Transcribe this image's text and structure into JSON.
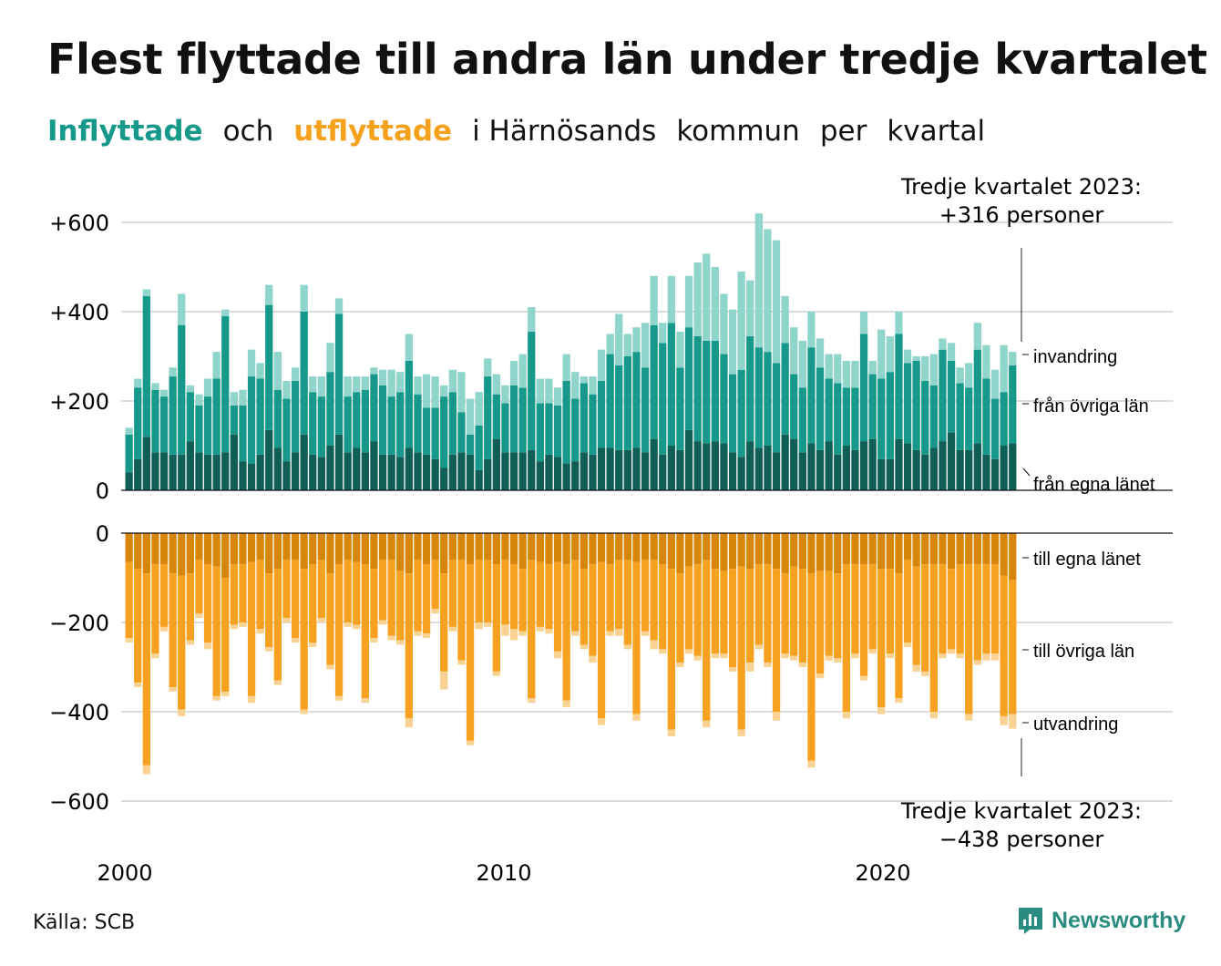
{
  "header": {
    "title": "Flest flyttade till andra län under tredje kvartalet",
    "subtitle_parts": [
      "Inflyttade",
      "och",
      "utflyttade",
      "i Härnösands",
      "kommun",
      "per",
      "kvartal"
    ]
  },
  "annotations": {
    "top_line1": "Tredje kvartalet 2023:",
    "top_line2": "+316 personer",
    "bottom_line1": "Tredje kvartalet 2023:",
    "bottom_line2": "−438 personer"
  },
  "footer": {
    "source": "Källa: SCB",
    "brand": "Newsworthy"
  },
  "colors": {
    "in_egna": "#0f5f57",
    "in_ovriga": "#16998a",
    "in_invandring": "#8fd5cc",
    "out_egna": "#d8860b",
    "out_ovriga": "#f6a11f",
    "out_utvandring": "#fad394"
  },
  "chart_data": {
    "type": "bar",
    "stacked": true,
    "x_start": "2000-Q1",
    "x_tick_labels": [
      "2000",
      "2010",
      "2020"
    ],
    "top_panel": {
      "y_ticks": [
        "+600",
        "+400",
        "+200",
        "0"
      ],
      "ylim": [
        0,
        600
      ],
      "series": [
        {
          "name": "från egna länet",
          "values": [
            40,
            70,
            120,
            85,
            85,
            80,
            80,
            110,
            85,
            80,
            80,
            85,
            125,
            65,
            60,
            80,
            135,
            95,
            65,
            85,
            125,
            80,
            75,
            100,
            125,
            85,
            95,
            85,
            110,
            80,
            80,
            75,
            95,
            85,
            80,
            70,
            50,
            80,
            85,
            80,
            45,
            70,
            115,
            85,
            85,
            85,
            90,
            65,
            80,
            75,
            60,
            65,
            85,
            80,
            95,
            95,
            90,
            90,
            95,
            85,
            115,
            80,
            100,
            90,
            135,
            110,
            105,
            110,
            105,
            85,
            75,
            110,
            95,
            100,
            85,
            125,
            115,
            85,
            105,
            90,
            110,
            80,
            100,
            90,
            110,
            115,
            70,
            70,
            115,
            105,
            90,
            80,
            95,
            110,
            130,
            90,
            90,
            105,
            80,
            70,
            100,
            105
          ]
        },
        {
          "name": "från övriga län",
          "values": [
            85,
            160,
            315,
            140,
            125,
            175,
            290,
            110,
            105,
            130,
            170,
            305,
            65,
            125,
            195,
            170,
            280,
            130,
            140,
            160,
            275,
            140,
            135,
            165,
            270,
            125,
            125,
            140,
            150,
            155,
            130,
            145,
            195,
            130,
            105,
            115,
            160,
            140,
            90,
            45,
            100,
            185,
            100,
            110,
            150,
            145,
            265,
            130,
            115,
            115,
            185,
            140,
            155,
            135,
            150,
            210,
            190,
            210,
            215,
            190,
            255,
            250,
            275,
            185,
            230,
            235,
            230,
            225,
            200,
            175,
            195,
            235,
            225,
            210,
            200,
            205,
            145,
            145,
            215,
            185,
            140,
            160,
            130,
            140,
            240,
            145,
            180,
            195,
            235,
            180,
            200,
            165,
            140,
            205,
            160,
            150,
            140,
            210,
            170,
            135,
            120,
            175
          ]
        },
        {
          "name": "invandring",
          "values": [
            15,
            20,
            15,
            15,
            15,
            20,
            70,
            15,
            25,
            40,
            60,
            15,
            30,
            35,
            60,
            35,
            45,
            85,
            40,
            30,
            60,
            35,
            45,
            65,
            35,
            45,
            35,
            30,
            15,
            35,
            60,
            45,
            60,
            40,
            75,
            70,
            25,
            50,
            90,
            80,
            75,
            40,
            45,
            40,
            55,
            75,
            55,
            55,
            55,
            40,
            60,
            60,
            15,
            40,
            70,
            45,
            115,
            50,
            55,
            100,
            110,
            45,
            105,
            80,
            115,
            165,
            195,
            165,
            135,
            145,
            220,
            125,
            300,
            275,
            275,
            105,
            105,
            105,
            80,
            65,
            55,
            65,
            60,
            60,
            50,
            30,
            110,
            80,
            50,
            30,
            10,
            55,
            70,
            25,
            40,
            35,
            55,
            60,
            75,
            65,
            105,
            30
          ]
        }
      ]
    },
    "bottom_panel": {
      "y_ticks": [
        "0",
        "−200",
        "−400",
        "−600"
      ],
      "ylim": [
        -600,
        0
      ],
      "series": [
        {
          "name": "till egna länet",
          "values": [
            -65,
            -80,
            -90,
            -70,
            -70,
            -90,
            -95,
            -90,
            -60,
            -70,
            -75,
            -100,
            -70,
            -70,
            -65,
            -60,
            -90,
            -80,
            -60,
            -60,
            -80,
            -70,
            -60,
            -90,
            -70,
            -60,
            -65,
            -70,
            -80,
            -60,
            -60,
            -85,
            -90,
            -60,
            -70,
            -60,
            -90,
            -60,
            -60,
            -70,
            -60,
            -60,
            -70,
            -60,
            -70,
            -80,
            -60,
            -65,
            -70,
            -65,
            -70,
            -60,
            -80,
            -70,
            -65,
            -70,
            -60,
            -60,
            -65,
            -60,
            -60,
            -70,
            -80,
            -90,
            -75,
            -70,
            -60,
            -80,
            -85,
            -80,
            -75,
            -80,
            -70,
            -70,
            -80,
            -90,
            -75,
            -80,
            -90,
            -85,
            -85,
            -90,
            -70,
            -70,
            -70,
            -70,
            -80,
            -80,
            -90,
            -60,
            -75,
            -70,
            -70,
            -70,
            -80,
            -70,
            -70,
            -70,
            -70,
            -70,
            -95,
            -105
          ]
        },
        {
          "name": "till övriga län",
          "values": [
            -170,
            -255,
            -430,
            -200,
            -140,
            -255,
            -300,
            -150,
            -120,
            -175,
            -290,
            -255,
            -135,
            -130,
            -300,
            -155,
            -165,
            -250,
            -130,
            -175,
            -315,
            -175,
            -130,
            -205,
            -295,
            -140,
            -140,
            -300,
            -155,
            -135,
            -170,
            -155,
            -325,
            -160,
            -155,
            -110,
            -220,
            -150,
            -225,
            -395,
            -140,
            -140,
            -240,
            -145,
            -145,
            -140,
            -310,
            -145,
            -145,
            -200,
            -305,
            -160,
            -170,
            -205,
            -350,
            -150,
            -155,
            -190,
            -340,
            -160,
            -180,
            -190,
            -360,
            -200,
            -185,
            -205,
            -360,
            -190,
            -185,
            -220,
            -365,
            -210,
            -180,
            -220,
            -320,
            -180,
            -200,
            -210,
            -420,
            -230,
            -190,
            -190,
            -330,
            -200,
            -250,
            -190,
            -310,
            -190,
            -280,
            -185,
            -220,
            -240,
            -330,
            -200,
            -180,
            -200,
            -335,
            -215,
            -200,
            -200,
            -315,
            -300
          ]
        },
        {
          "name": "utvandring",
          "values": [
            -10,
            -10,
            -20,
            -10,
            -10,
            -10,
            -15,
            -10,
            -10,
            -15,
            -10,
            -10,
            -10,
            -10,
            -15,
            -10,
            -10,
            -10,
            -10,
            -10,
            -10,
            -10,
            -10,
            -10,
            -10,
            -10,
            -10,
            -10,
            -10,
            -10,
            -10,
            -10,
            -20,
            -10,
            -10,
            -10,
            -40,
            -10,
            -10,
            -10,
            -15,
            -10,
            -10,
            -25,
            -25,
            -10,
            -10,
            -10,
            -10,
            -15,
            -15,
            -10,
            -10,
            -15,
            -15,
            -10,
            -15,
            -10,
            -15,
            -10,
            -20,
            -10,
            -15,
            -10,
            -10,
            -10,
            -15,
            -10,
            -10,
            -10,
            -15,
            -20,
            -10,
            -10,
            -20,
            -10,
            -10,
            -10,
            -15,
            -10,
            -10,
            -10,
            -15,
            -10,
            -10,
            -10,
            -15,
            -10,
            -10,
            -10,
            -15,
            -10,
            -15,
            -10,
            -10,
            -10,
            -15,
            -10,
            -15,
            -15,
            -20,
            -33
          ]
        }
      ]
    },
    "legend_top": [
      "invandring",
      "från övriga län",
      "från egna länet"
    ],
    "legend_bottom": [
      "till egna länet",
      "till övriga län",
      "utvandring"
    ]
  }
}
